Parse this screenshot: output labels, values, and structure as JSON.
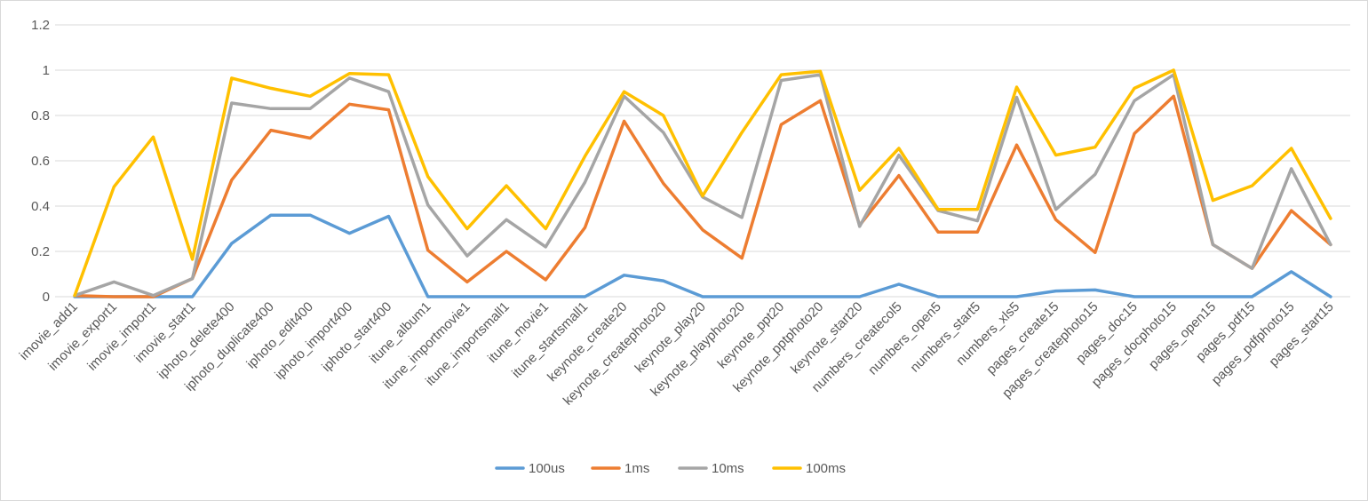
{
  "chart_data": {
    "type": "line",
    "title": "",
    "xlabel": "",
    "ylabel": "",
    "ylim": [
      0,
      1.2
    ],
    "yticks": [
      "0",
      "0.2",
      "0.4",
      "0.6",
      "0.8",
      "1",
      "1.2"
    ],
    "grid": "horizontal",
    "legend_position": "bottom",
    "categories": [
      "imovie_add1",
      "imovie_export1",
      "imovie_import1",
      "imovie_start1",
      "iphoto_delete400",
      "iphoto_duplicate400",
      "iphoto_edit400",
      "iphoto_import400",
      "iphoto_start400",
      "itune_album1",
      "itune_importmovie1",
      "itune_importsmall1",
      "itune_movie1",
      "itune_startsmall1",
      "keynote_create20",
      "keynote_createphoto20",
      "keynote_play20",
      "keynote_playphoto20",
      "keynote_ppt20",
      "keynote_pptphoto20",
      "keynote_start20",
      "numbers_createcol5",
      "numbers_open5",
      "numbers_start5",
      "numbers_xls5",
      "pages_create15",
      "pages_createphoto15",
      "pages_doc15",
      "pages_docphoto15",
      "pages_open15",
      "pages_pdf15",
      "pages_pdfphoto15",
      "pages_start15"
    ],
    "series": [
      {
        "name": "100us",
        "color": "#5b9bd5",
        "values": [
          0,
          0,
          0,
          0,
          0.235,
          0.36,
          0.36,
          0.28,
          0.355,
          0,
          0,
          0,
          0,
          0,
          0.095,
          0.07,
          0,
          0,
          0,
          0,
          0,
          0.055,
          0,
          0,
          0,
          0.025,
          0.03,
          0,
          0,
          0,
          0,
          0.11,
          0
        ]
      },
      {
        "name": "1ms",
        "color": "#ed7d31",
        "values": [
          0.005,
          0,
          0,
          0.08,
          0.515,
          0.735,
          0.7,
          0.85,
          0.825,
          0.205,
          0.065,
          0.2,
          0.075,
          0.305,
          0.775,
          0.5,
          0.295,
          0.17,
          0.76,
          0.865,
          0.315,
          0.535,
          0.285,
          0.285,
          0.67,
          0.34,
          0.195,
          0.72,
          0.885,
          0.23,
          0.125,
          0.38,
          0.23
        ]
      },
      {
        "name": "10ms",
        "color": "#a5a5a5",
        "values": [
          0.005,
          0.065,
          0.005,
          0.08,
          0.855,
          0.83,
          0.83,
          0.965,
          0.905,
          0.405,
          0.18,
          0.34,
          0.22,
          0.505,
          0.885,
          0.725,
          0.44,
          0.35,
          0.955,
          0.98,
          0.31,
          0.625,
          0.38,
          0.335,
          0.88,
          0.385,
          0.54,
          0.865,
          0.98,
          0.23,
          0.125,
          0.565,
          0.23
        ]
      },
      {
        "name": "100ms",
        "color": "#ffc000",
        "values": [
          0.005,
          0.485,
          0.705,
          0.165,
          0.965,
          0.92,
          0.885,
          0.985,
          0.98,
          0.53,
          0.3,
          0.49,
          0.3,
          0.62,
          0.905,
          0.8,
          0.445,
          0.725,
          0.98,
          0.995,
          0.47,
          0.655,
          0.385,
          0.385,
          0.925,
          0.625,
          0.66,
          0.92,
          1.0,
          0.425,
          0.49,
          0.655,
          0.345
        ]
      }
    ]
  }
}
